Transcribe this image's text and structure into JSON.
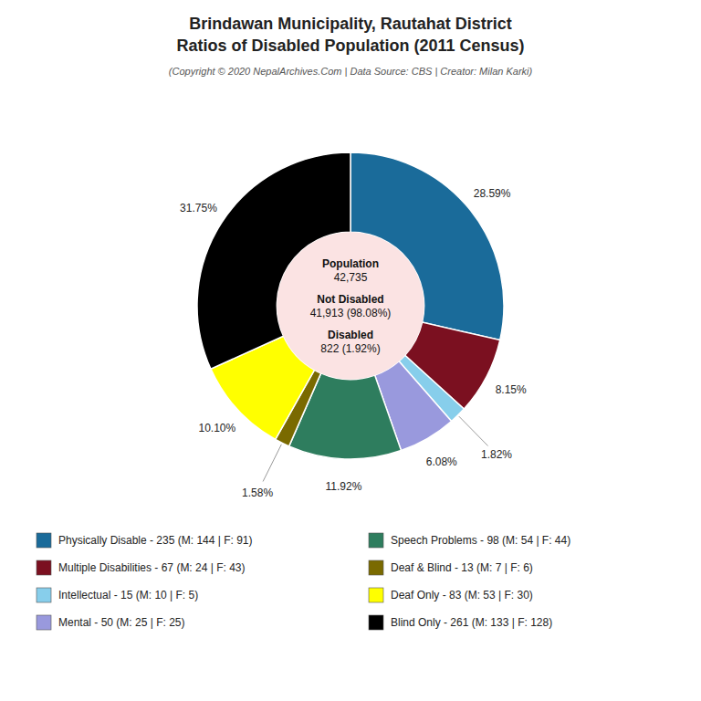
{
  "chart_data": {
    "type": "pie",
    "title": [
      "Brindawan Municipality, Rautahat District",
      "Ratios of Disabled Population (2011 Census)"
    ],
    "subtitle": "(Copyright © 2020 NepalArchives.Com | Data Source: CBS | Creator: Milan Karki)",
    "categories": [
      "Physically Disable - 235 (M: 144 | F: 91)",
      "Multiple Disabilities - 67 (M: 24 | F: 43)",
      "Intellectual - 15 (M: 10 | F: 5)",
      "Mental - 50 (M: 25 | F: 25)",
      "Speech Problems - 98 (M: 54 | F: 44)",
      "Deaf & Blind - 13 (M: 7 | F: 6)",
      "Deaf Only - 83 (M: 53 | F: 30)",
      "Blind Only - 261 (M: 133 | F: 128)"
    ],
    "values": [
      28.59,
      8.15,
      1.82,
      6.08,
      11.92,
      1.58,
      10.1,
      31.75
    ],
    "value_labels": [
      "28.59%",
      "8.15%",
      "1.82%",
      "6.08%",
      "11.92%",
      "1.58%",
      "10.10%",
      "31.75%"
    ],
    "colors": [
      "#1a6b9a",
      "#7b1020",
      "#87ceeb",
      "#9999dd",
      "#2e7d5e",
      "#7a6a00",
      "#ffff00",
      "#000000"
    ],
    "data_labels": true,
    "legend": "bottom",
    "annotations": [
      "Population",
      "42,735",
      "Not Disabled",
      "41,913 (98.08%)",
      "Disabled",
      "822 (1.92%)"
    ]
  }
}
